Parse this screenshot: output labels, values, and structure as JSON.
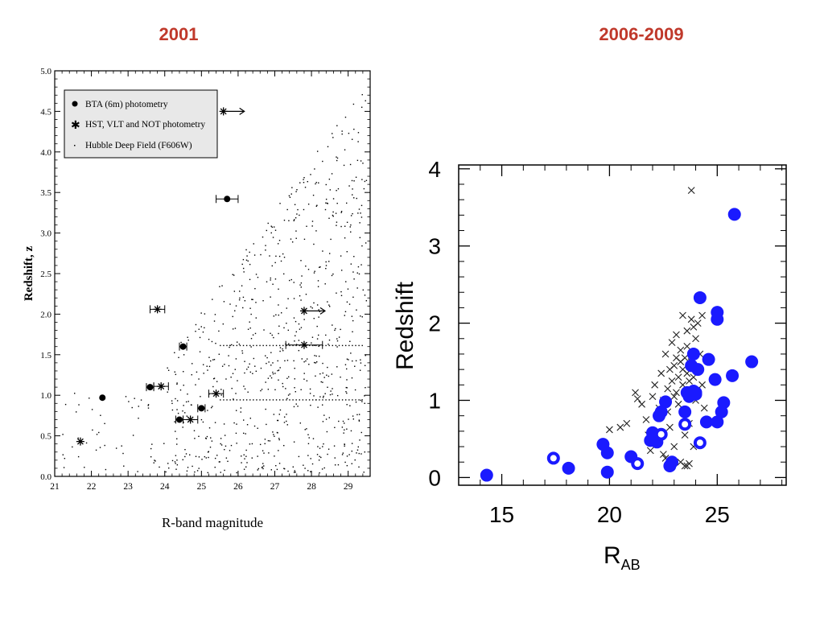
{
  "slide": {
    "left_title": "2001",
    "right_title": "2006-2009"
  },
  "chart_data": [
    {
      "type": "scatter",
      "xlabel": "R-band magnitude",
      "ylabel": "Redshift, z",
      "xlim": [
        21,
        29.6
      ],
      "ylim": [
        0,
        5
      ],
      "xticks": [
        "21",
        "22",
        "23",
        "24",
        "25",
        "26",
        "27",
        "28",
        "29"
      ],
      "yticks": [
        "0.0",
        "0.5",
        "1.0",
        "1.5",
        "2.0",
        "2.5",
        "3.0",
        "3.5",
        "4.0",
        "4.5",
        "5.0"
      ],
      "legend": {
        "placement": "top-left",
        "entries": [
          "BTA (6m) photometry",
          "HST, VLT and NOT photometry",
          "Hubble Deep Field (F606W)"
        ]
      },
      "series": [
        {
          "name": "BTA (6m) photometry",
          "marker": "filled-circle",
          "points": [
            {
              "x": 22.3,
              "y": 0.97,
              "xerr": 0
            },
            {
              "x": 23.6,
              "y": 1.1,
              "xerr": 0.1
            },
            {
              "x": 24.4,
              "y": 0.7,
              "xerr": 0.1
            },
            {
              "x": 24.5,
              "y": 1.6,
              "xerr": 0.1
            },
            {
              "x": 25.0,
              "y": 0.84,
              "xerr": 0.1
            },
            {
              "x": 25.7,
              "y": 3.42,
              "xerr": 0.3
            }
          ]
        },
        {
          "name": "HST, VLT and NOT photometry",
          "marker": "asterisk",
          "points": [
            {
              "x": 21.7,
              "y": 0.43,
              "xerr": 0
            },
            {
              "x": 23.8,
              "y": 2.06,
              "xerr": 0.2
            },
            {
              "x": 23.9,
              "y": 1.11,
              "xerr": 0.2
            },
            {
              "x": 24.7,
              "y": 0.7,
              "xerr": 0.2
            },
            {
              "x": 25.4,
              "y": 1.02,
              "xerr": 0.2
            },
            {
              "x": 25.6,
              "y": 4.5,
              "xerr": 0,
              "lower_limit": true
            },
            {
              "x": 27.8,
              "y": 1.62,
              "xerr": 0.5
            },
            {
              "x": 27.8,
              "y": 2.04,
              "xerr": 0,
              "lower_limit": true
            }
          ]
        },
        {
          "name": "Hubble Deep Field (F606W)",
          "marker": "dot",
          "note": "dense cloud of ~800 faint galaxies, 24–29.5 mag, z 0.1–4.8"
        }
      ]
    },
    {
      "type": "scatter",
      "xlabel": "R",
      "xlabel_sub": "AB",
      "ylabel": "Redshift",
      "xlim": [
        13,
        28.2
      ],
      "ylim": [
        -0.1,
        4.05
      ],
      "xticks": [
        "15",
        "20",
        "25"
      ],
      "yticks": [
        "0",
        "1",
        "2",
        "3",
        "4"
      ],
      "series": [
        {
          "marker": "filled-blue-circle",
          "points": [
            {
              "x": 14.3,
              "y": 0.03
            },
            {
              "x": 18.1,
              "y": 0.12
            },
            {
              "x": 19.7,
              "y": 0.43
            },
            {
              "x": 19.9,
              "y": 0.32
            },
            {
              "x": 19.9,
              "y": 0.07
            },
            {
              "x": 21.0,
              "y": 0.27
            },
            {
              "x": 21.9,
              "y": 0.48
            },
            {
              "x": 22.0,
              "y": 0.58
            },
            {
              "x": 22.2,
              "y": 0.46
            },
            {
              "x": 22.3,
              "y": 0.8
            },
            {
              "x": 22.4,
              "y": 0.85
            },
            {
              "x": 22.6,
              "y": 0.98
            },
            {
              "x": 22.8,
              "y": 0.15
            },
            {
              "x": 22.9,
              "y": 0.2
            },
            {
              "x": 23.5,
              "y": 0.85
            },
            {
              "x": 23.6,
              "y": 1.1
            },
            {
              "x": 23.7,
              "y": 1.05
            },
            {
              "x": 23.8,
              "y": 1.45
            },
            {
              "x": 23.9,
              "y": 1.6
            },
            {
              "x": 24.0,
              "y": 1.1
            },
            {
              "x": 24.1,
              "y": 1.4
            },
            {
              "x": 24.2,
              "y": 2.33
            },
            {
              "x": 24.5,
              "y": 0.72
            },
            {
              "x": 24.6,
              "y": 1.53
            },
            {
              "x": 24.9,
              "y": 1.27
            },
            {
              "x": 25.0,
              "y": 0.72
            },
            {
              "x": 25.0,
              "y": 2.14
            },
            {
              "x": 25.0,
              "y": 2.05
            },
            {
              "x": 25.3,
              "y": 0.97
            },
            {
              "x": 25.2,
              "y": 0.85
            },
            {
              "x": 25.7,
              "y": 1.32
            },
            {
              "x": 25.8,
              "y": 3.41
            },
            {
              "x": 26.6,
              "y": 1.5
            },
            {
              "x": 23.9,
              "y": 1.12
            },
            {
              "x": 24.0,
              "y": 1.08
            }
          ]
        },
        {
          "marker": "open-blue-circle",
          "points": [
            {
              "x": 17.4,
              "y": 0.25
            },
            {
              "x": 21.3,
              "y": 0.18
            },
            {
              "x": 22.4,
              "y": 0.56
            },
            {
              "x": 23.5,
              "y": 0.69
            },
            {
              "x": 24.2,
              "y": 0.45
            }
          ]
        },
        {
          "marker": "x-cross",
          "points": [
            {
              "x": 20.0,
              "y": 0.62
            },
            {
              "x": 20.5,
              "y": 0.65
            },
            {
              "x": 20.8,
              "y": 0.7
            },
            {
              "x": 21.2,
              "y": 1.1
            },
            {
              "x": 21.3,
              "y": 1.02
            },
            {
              "x": 21.5,
              "y": 0.95
            },
            {
              "x": 21.7,
              "y": 0.75
            },
            {
              "x": 21.8,
              "y": 0.55
            },
            {
              "x": 21.9,
              "y": 0.35
            },
            {
              "x": 22.0,
              "y": 1.05
            },
            {
              "x": 22.1,
              "y": 1.2
            },
            {
              "x": 22.3,
              "y": 0.9
            },
            {
              "x": 22.4,
              "y": 1.35
            },
            {
              "x": 22.5,
              "y": 1.0
            },
            {
              "x": 22.6,
              "y": 0.25
            },
            {
              "x": 22.6,
              "y": 1.6
            },
            {
              "x": 22.7,
              "y": 1.15
            },
            {
              "x": 22.8,
              "y": 1.4
            },
            {
              "x": 22.8,
              "y": 0.65
            },
            {
              "x": 22.9,
              "y": 1.25
            },
            {
              "x": 22.9,
              "y": 1.75
            },
            {
              "x": 23.0,
              "y": 1.45
            },
            {
              "x": 23.0,
              "y": 1.05
            },
            {
              "x": 23.0,
              "y": 0.4
            },
            {
              "x": 23.1,
              "y": 1.55
            },
            {
              "x": 23.1,
              "y": 1.85
            },
            {
              "x": 23.2,
              "y": 1.3
            },
            {
              "x": 23.2,
              "y": 0.95
            },
            {
              "x": 23.3,
              "y": 1.5
            },
            {
              "x": 23.3,
              "y": 1.65
            },
            {
              "x": 23.3,
              "y": 0.2
            },
            {
              "x": 23.4,
              "y": 1.2
            },
            {
              "x": 23.4,
              "y": 1.4
            },
            {
              "x": 23.4,
              "y": 2.1
            },
            {
              "x": 23.5,
              "y": 1.55
            },
            {
              "x": 23.5,
              "y": 0.55
            },
            {
              "x": 23.5,
              "y": 0.15
            },
            {
              "x": 23.6,
              "y": 1.35
            },
            {
              "x": 23.6,
              "y": 1.7
            },
            {
              "x": 23.6,
              "y": 1.9
            },
            {
              "x": 23.7,
              "y": 1.25
            },
            {
              "x": 23.7,
              "y": 0.7
            },
            {
              "x": 23.7,
              "y": 0.18
            },
            {
              "x": 23.8,
              "y": 1.5
            },
            {
              "x": 23.8,
              "y": 3.72
            },
            {
              "x": 23.8,
              "y": 2.05
            },
            {
              "x": 23.9,
              "y": 1.3
            },
            {
              "x": 23.9,
              "y": 0.4
            },
            {
              "x": 24.0,
              "y": 1.8
            },
            {
              "x": 24.0,
              "y": 1.0
            },
            {
              "x": 24.1,
              "y": 2.0
            },
            {
              "x": 24.2,
              "y": 1.6
            },
            {
              "x": 24.3,
              "y": 2.1
            },
            {
              "x": 24.3,
              "y": 1.2
            },
            {
              "x": 24.4,
              "y": 0.9
            },
            {
              "x": 22.5,
              "y": 0.3
            },
            {
              "x": 23.9,
              "y": 1.95
            },
            {
              "x": 23.1,
              "y": 1.1
            },
            {
              "x": 22.7,
              "y": 0.85
            },
            {
              "x": 23.6,
              "y": 0.15
            }
          ]
        }
      ]
    }
  ]
}
